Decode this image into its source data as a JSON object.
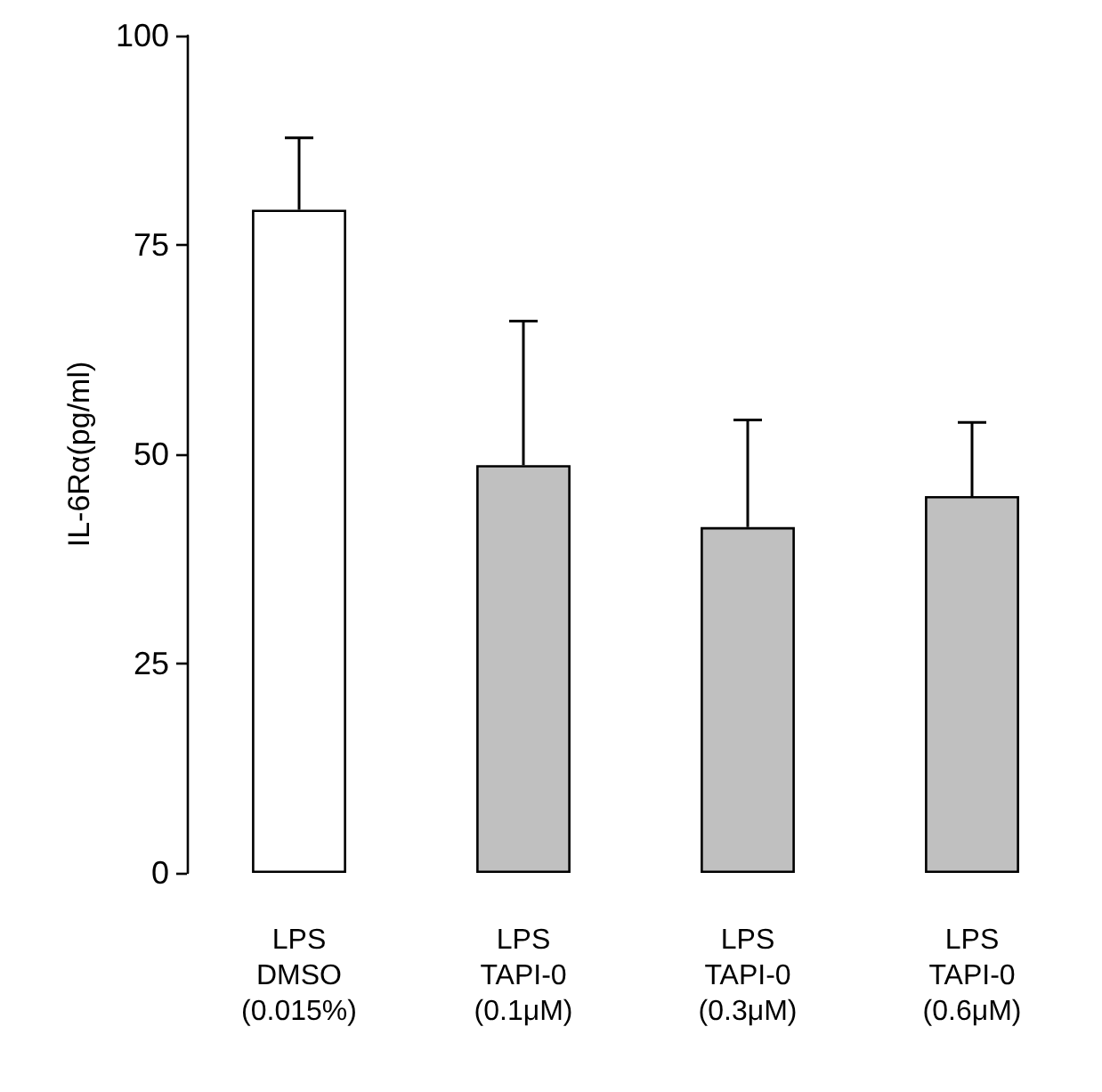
{
  "chart_data": {
    "type": "bar",
    "ylabel": "IL-6Rα(pg/ml)",
    "categories": [
      "LPS\nDMSO\n(0.015%)",
      "LPS\nTAPI-0\n(0.1μM)",
      "LPS\nTAPI-0\n(0.3μM)",
      "LPS\nTAPI-0\n(0.6μM)"
    ],
    "values": [
      79.2,
      48.7,
      41.3,
      45.0
    ],
    "colors": [
      "#ffffff",
      "#c0c0c0",
      "#c0c0c0",
      "#c0c0c0"
    ],
    "errors": [
      [
        79.2,
        87.8
      ],
      [
        48.7,
        65.9
      ],
      [
        41.3,
        54.1
      ],
      [
        45.0,
        53.8
      ]
    ],
    "ylim": [
      0,
      100
    ],
    "yticks": [
      0,
      25,
      50,
      75,
      100
    ],
    "grid": false
  }
}
